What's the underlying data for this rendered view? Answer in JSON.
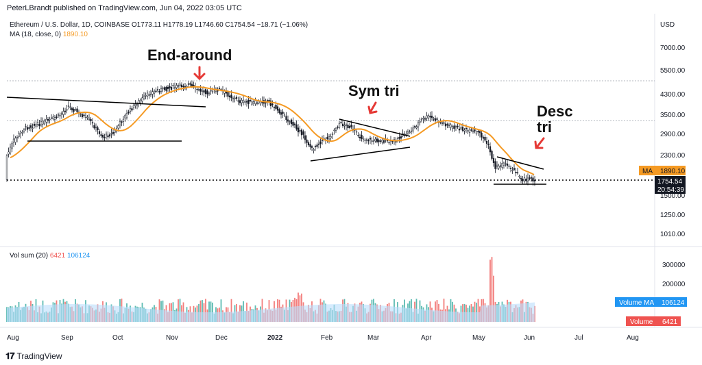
{
  "header": {
    "publisher": "PeterLBrandt published on TradingView.com, Jun 04, 2022 03:05 UTC",
    "symbol_line": "Ethereum / U.S. Dollar, 1D, COINBASE  O1773.11  H1778.19  L1746.60  C1754.54  −18.71 (−1.06%)",
    "ma_label": "MA (18, close, 0)",
    "ma_value": "1890.10"
  },
  "colors": {
    "up": "#131722",
    "ma": "#f59a23",
    "vol_up": "#26a69a",
    "vol_down": "#ef5350",
    "vol_ma": "#2196f3"
  },
  "annotations": {
    "end_around": "End-around",
    "sym_tri": "Sym tri",
    "desc_tri_1": "Desc",
    "desc_tri_2": "tri"
  },
  "price_axis": {
    "currency": "USD",
    "ticks": [
      "7000.00",
      "5500.00",
      "4300.00",
      "3500.00",
      "2900.00",
      "2300.00",
      "1500.00",
      "1250.00",
      "1010.00"
    ],
    "tags": {
      "ma_label": "MA",
      "ma_value": "1890.10",
      "last_price": "1754.54",
      "countdown": "20:54:39"
    }
  },
  "volume": {
    "legend_label": "Vol sum (20)",
    "legend_vol": "6421",
    "legend_ma": "106124",
    "ticks": [
      "300000",
      "200000"
    ],
    "tags": {
      "ma_label": "Volume MA",
      "ma_value": "106124",
      "vol_label": "Volume",
      "vol_value": "6421"
    }
  },
  "time_axis": [
    "Aug",
    "Sep",
    "Oct",
    "Nov",
    "Dec",
    "2022",
    "Feb",
    "Mar",
    "Apr",
    "May",
    "Jun",
    "Jul",
    "Aug"
  ],
  "footer": {
    "brand": "TradingView"
  },
  "chart_data": {
    "type": "candlestick",
    "series_note": "",
    "x": [
      "2021-08",
      "2021-09",
      "2021-10",
      "2021-11",
      "2021-12",
      "2022-01",
      "2022-02",
      "2022-03",
      "2022-04",
      "2022-05",
      "2022-06"
    ],
    "close": [
      3200,
      3400,
      3800,
      4500,
      4000,
      3000,
      2900,
      3000,
      3300,
      2000,
      1754.54
    ],
    "ma18_last": 1890.1,
    "last_close": 1754.54,
    "ylim": [
      1010,
      7000
    ]
  }
}
